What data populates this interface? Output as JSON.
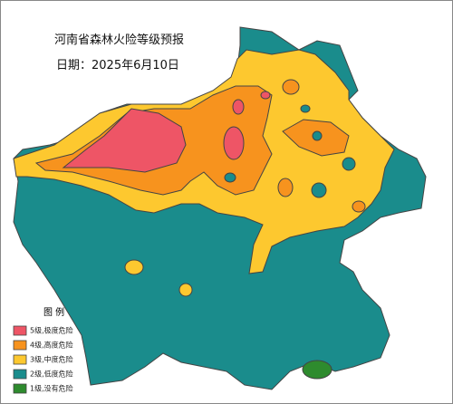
{
  "title": "河南省森林火险等级预报",
  "date": "日期：2025年6月10日",
  "legend": {
    "title": "图  例",
    "items": [
      {
        "label": "5级,极度危险",
        "color": "#ee5566"
      },
      {
        "label": "4级,高度危险",
        "color": "#f7931e"
      },
      {
        "label": "3级,中度危险",
        "color": "#fdc82f"
      },
      {
        "label": "2级,低度危险",
        "color": "#1a8c8c"
      },
      {
        "label": "1级,没有危险",
        "color": "#2e8b2e"
      }
    ]
  }
}
